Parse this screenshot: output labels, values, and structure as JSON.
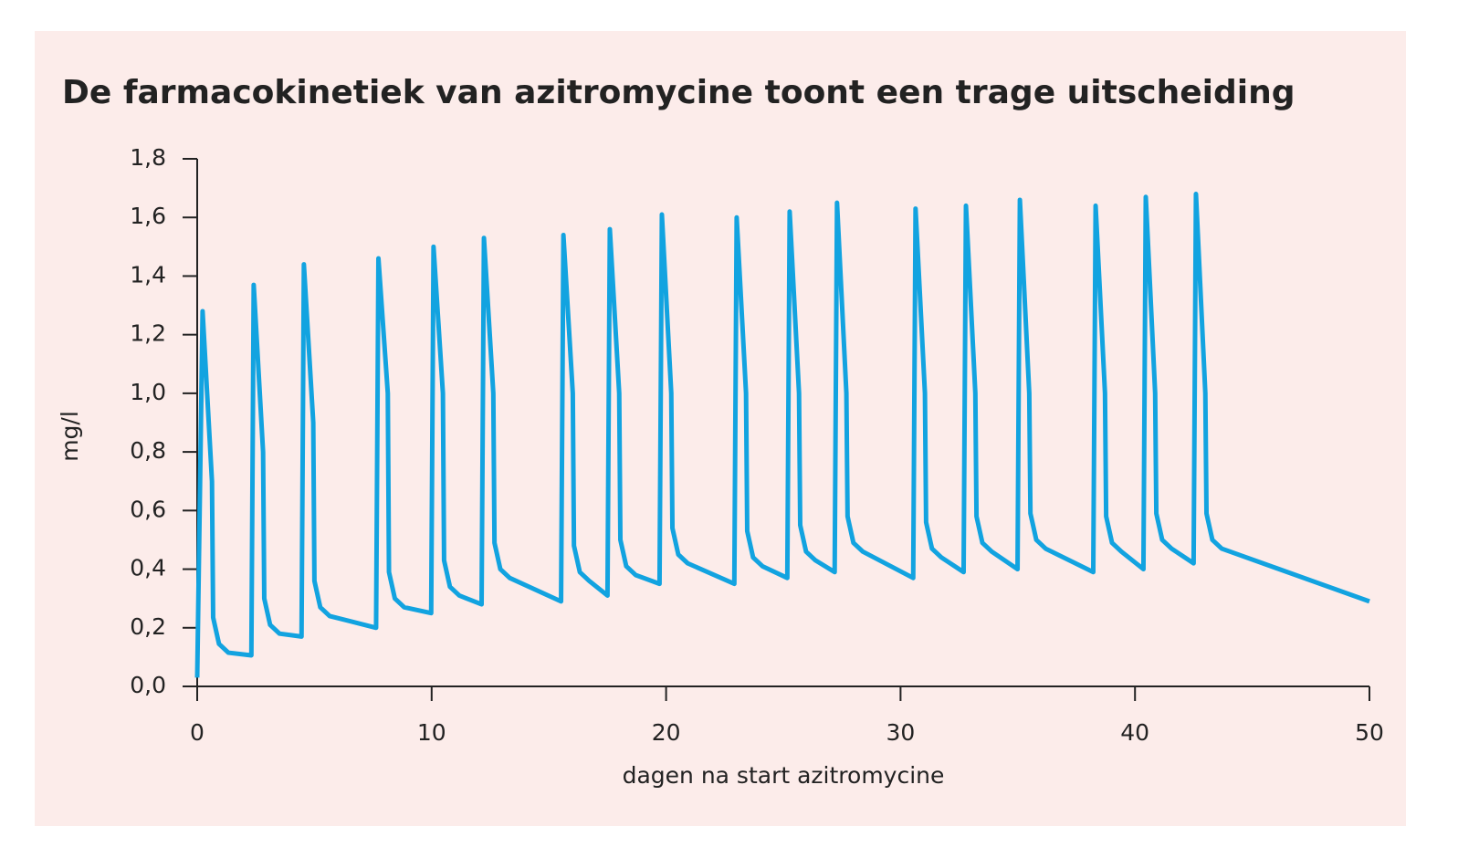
{
  "chart_data": {
    "type": "line",
    "title": "De farmacokinetiek van azitromycine toont een trage uitscheiding",
    "x_label": "dagen na start azitromycine",
    "y_label": "mg/l",
    "xlim": [
      0,
      50
    ],
    "xticks": [
      0,
      10,
      20,
      30,
      40,
      50
    ],
    "ylim": [
      0,
      1.8
    ],
    "yticks": [
      {
        "value": 0,
        "label": "0,0"
      },
      {
        "value": 0.2,
        "label": "0,2"
      },
      {
        "value": 0.4,
        "label": "0,4"
      },
      {
        "value": 0.6,
        "label": "0,6"
      },
      {
        "value": 0.8,
        "label": "0,8"
      },
      {
        "value": 1.0,
        "label": "1,0"
      },
      {
        "value": 1.2,
        "label": "1,2"
      },
      {
        "value": 1.4,
        "label": "1,4"
      },
      {
        "value": 1.6,
        "label": "1,6"
      },
      {
        "value": 1.8,
        "label": "1,8"
      }
    ],
    "color": "#12a3e0",
    "x": [
      0,
      0.23,
      0.63,
      0.68,
      0.93,
      1.33,
      2.31,
      2.41,
      2.81,
      2.86,
      3.11,
      3.51,
      4.45,
      4.55,
      4.95,
      5.0,
      5.25,
      5.65,
      7.63,
      7.73,
      8.13,
      8.18,
      8.43,
      8.83,
      9.98,
      10.08,
      10.48,
      10.53,
      10.78,
      11.18,
      12.13,
      12.23,
      12.63,
      12.68,
      12.93,
      13.33,
      15.52,
      15.62,
      16.02,
      16.07,
      16.32,
      16.72,
      17.5,
      17.6,
      18.0,
      18.05,
      18.3,
      18.7,
      19.72,
      19.82,
      20.22,
      20.27,
      20.52,
      20.92,
      22.91,
      23.01,
      23.41,
      23.46,
      23.71,
      24.11,
      25.17,
      25.27,
      25.67,
      25.72,
      25.97,
      26.37,
      27.19,
      27.29,
      27.69,
      27.74,
      27.99,
      28.39,
      30.54,
      30.64,
      31.04,
      31.09,
      31.34,
      31.74,
      32.69,
      32.79,
      33.19,
      33.24,
      33.49,
      33.89,
      34.99,
      35.09,
      35.49,
      35.54,
      35.79,
      36.19,
      38.22,
      38.32,
      38.72,
      38.77,
      39.02,
      39.42,
      40.36,
      40.46,
      40.86,
      40.91,
      41.16,
      41.56,
      42.5,
      42.6,
      43.0,
      43.05,
      43.3,
      43.7,
      50
    ],
    "values": [
      0.03,
      1.28,
      0.7,
      0.235,
      0.145,
      0.115,
      0.106,
      1.37,
      0.8,
      0.3,
      0.21,
      0.18,
      0.17,
      1.44,
      0.9,
      0.36,
      0.27,
      0.24,
      0.2,
      1.46,
      1.0,
      0.39,
      0.3,
      0.27,
      0.25,
      1.5,
      1.0,
      0.43,
      0.34,
      0.31,
      0.28,
      1.53,
      1.0,
      0.49,
      0.4,
      0.37,
      0.29,
      1.54,
      1.0,
      0.48,
      0.39,
      0.36,
      0.31,
      1.56,
      1.0,
      0.5,
      0.41,
      0.38,
      0.35,
      1.61,
      1.0,
      0.54,
      0.45,
      0.42,
      0.35,
      1.6,
      1.0,
      0.53,
      0.44,
      0.41,
      0.37,
      1.62,
      1.0,
      0.55,
      0.46,
      0.43,
      0.39,
      1.65,
      1.0,
      0.58,
      0.49,
      0.46,
      0.37,
      1.63,
      1.0,
      0.56,
      0.47,
      0.44,
      0.39,
      1.64,
      1.0,
      0.58,
      0.49,
      0.46,
      0.4,
      1.66,
      1.0,
      0.59,
      0.5,
      0.47,
      0.39,
      1.64,
      1.0,
      0.58,
      0.49,
      0.46,
      0.4,
      1.67,
      1.0,
      0.59,
      0.5,
      0.47,
      0.42,
      1.68,
      1.0,
      0.59,
      0.5,
      0.47,
      0.29
    ]
  }
}
